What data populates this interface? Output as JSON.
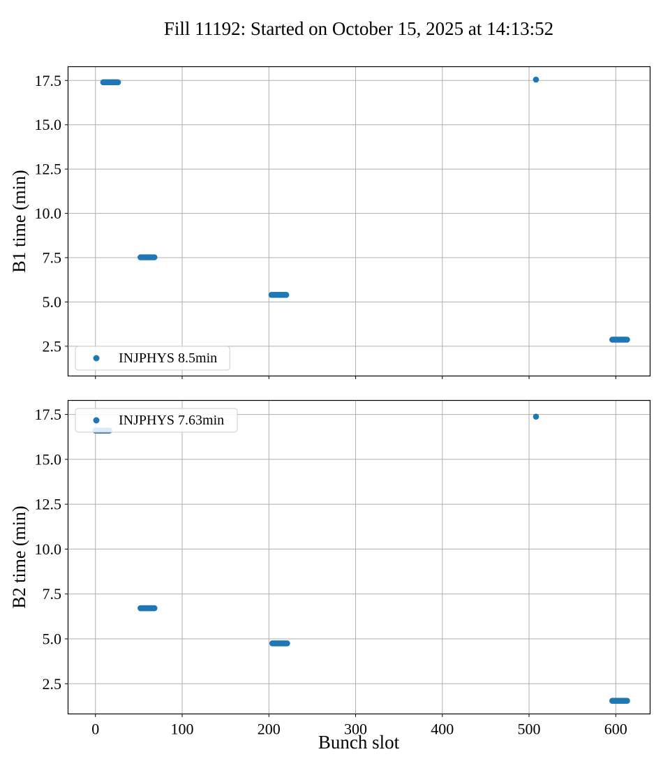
{
  "title": "Fill 11192: Started on October 15, 2025 at 14:13:52",
  "xlabel": "Bunch slot",
  "colors": {
    "marker": "#1f77b4",
    "grid": "#b0b0b0",
    "spine": "#000000",
    "legend_border": "#cccccc",
    "legend_fill": "rgba(255,255,255,0.85)"
  },
  "chart_data": [
    {
      "type": "scatter",
      "panel": "top",
      "ylabel": "B1 time (min)",
      "legend": "INJPHYS 8.5min",
      "legend_position": "lower left",
      "grid": true,
      "xlim": [
        -32,
        640
      ],
      "ylim": [
        0.8,
        18.3
      ],
      "xticks": [
        0,
        100,
        200,
        300,
        400,
        500,
        600
      ],
      "yticks": [
        2.5,
        5.0,
        7.5,
        10.0,
        12.5,
        15.0,
        17.5
      ],
      "clusters": [
        {
          "x_start": 9,
          "x_end": 26,
          "y": 17.4,
          "n": 12
        },
        {
          "x_start": 52,
          "x_end": 68,
          "y": 7.52,
          "n": 12
        },
        {
          "x_start": 203,
          "x_end": 220,
          "y": 5.4,
          "n": 12
        },
        {
          "x_start": 508,
          "x_end": 508,
          "y": 17.55,
          "n": 1
        },
        {
          "x_start": 596,
          "x_end": 613,
          "y": 2.87,
          "n": 12
        }
      ]
    },
    {
      "type": "scatter",
      "panel": "bottom",
      "ylabel": "B2 time (min)",
      "legend": "INJPHYS 7.63min",
      "legend_position": "upper left",
      "grid": true,
      "xlim": [
        -32,
        640
      ],
      "ylim": [
        0.8,
        18.3
      ],
      "xticks": [
        0,
        100,
        200,
        300,
        400,
        500,
        600
      ],
      "yticks": [
        2.5,
        5.0,
        7.5,
        10.0,
        12.5,
        15.0,
        17.5
      ],
      "clusters": [
        {
          "x_start": 0,
          "x_end": 16,
          "y": 16.6,
          "n": 12
        },
        {
          "x_start": 52,
          "x_end": 68,
          "y": 6.71,
          "n": 12
        },
        {
          "x_start": 204,
          "x_end": 221,
          "y": 4.75,
          "n": 12
        },
        {
          "x_start": 508,
          "x_end": 508,
          "y": 17.38,
          "n": 1
        },
        {
          "x_start": 596,
          "x_end": 613,
          "y": 1.55,
          "n": 12
        }
      ]
    }
  ]
}
